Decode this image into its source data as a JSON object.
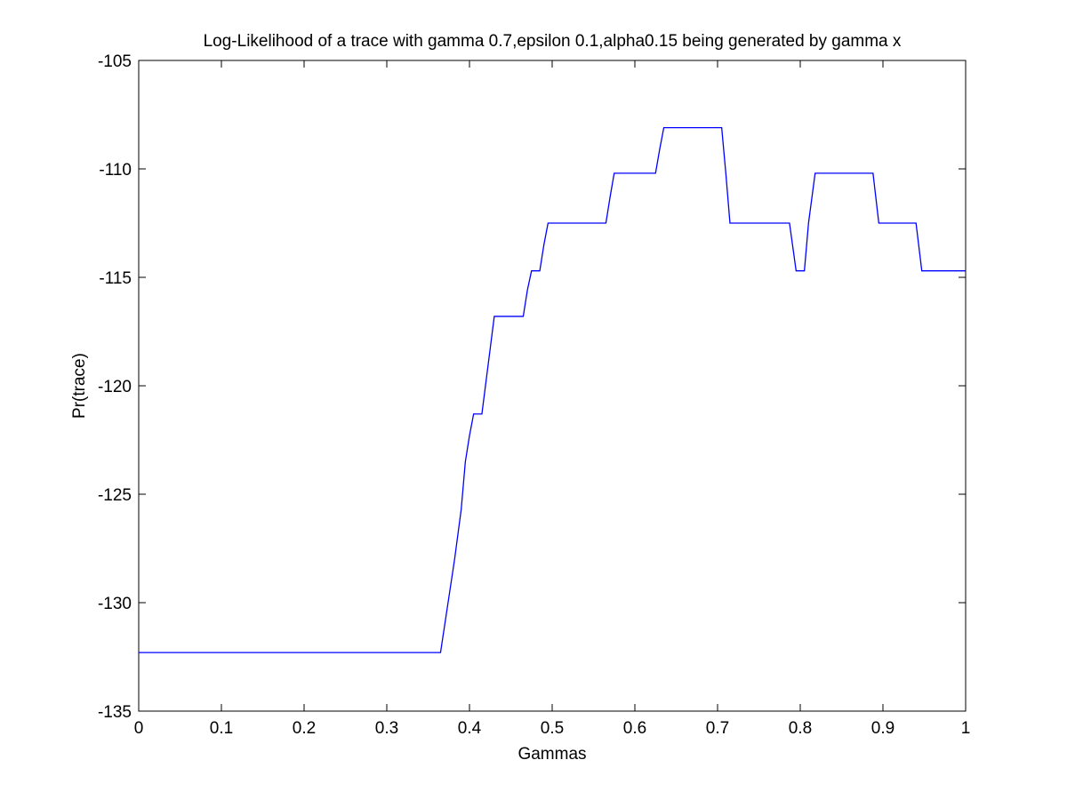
{
  "chart_data": {
    "type": "line",
    "title": "Log-Likelihood of a trace with gamma 0.7,epsilon 0.1,alpha0.15 being generated by gamma x",
    "xlabel": "Gammas",
    "ylabel": "Pr(trace)",
    "xlim": [
      0,
      1
    ],
    "ylim": [
      -135,
      -105
    ],
    "xticks": [
      0,
      0.1,
      0.2,
      0.3,
      0.4,
      0.5,
      0.6,
      0.7,
      0.8,
      0.9,
      1
    ],
    "xtick_labels": [
      "0",
      "0.1",
      "0.2",
      "0.3",
      "0.4",
      "0.5",
      "0.6",
      "0.7",
      "0.8",
      "0.9",
      "1"
    ],
    "yticks": [
      -135,
      -130,
      -125,
      -120,
      -115,
      -110,
      -105
    ],
    "ytick_labels": [
      "-135",
      "-130",
      "-125",
      "-120",
      "-115",
      "-110",
      "-105"
    ],
    "grid": false,
    "line_color": "#0000ff",
    "axes_color": "#000000",
    "series": [
      {
        "x": [
          0,
          0.05,
          0.1,
          0.15,
          0.2,
          0.25,
          0.3,
          0.35,
          0.365,
          0.382,
          0.39,
          0.395,
          0.4,
          0.405,
          0.41,
          0.415,
          0.42,
          0.425,
          0.43,
          0.435,
          0.44,
          0.45,
          0.46,
          0.465,
          0.47,
          0.475,
          0.48,
          0.485,
          0.49,
          0.495,
          0.5,
          0.51,
          0.52,
          0.53,
          0.54,
          0.55,
          0.56,
          0.565,
          0.57,
          0.575,
          0.58,
          0.59,
          0.6,
          0.61,
          0.62,
          0.625,
          0.63,
          0.635,
          0.64,
          0.65,
          0.66,
          0.67,
          0.68,
          0.69,
          0.7,
          0.705,
          0.71,
          0.715,
          0.72,
          0.73,
          0.74,
          0.75,
          0.76,
          0.77,
          0.78,
          0.787,
          0.795,
          0.8,
          0.805,
          0.81,
          0.818,
          0.82,
          0.83,
          0.84,
          0.85,
          0.86,
          0.87,
          0.88,
          0.888,
          0.895,
          0.9,
          0.91,
          0.92,
          0.93,
          0.94,
          0.947,
          0.95,
          0.96,
          0.97,
          0.98,
          0.99,
          1
        ],
        "y": [
          -132.3,
          -132.3,
          -132.3,
          -132.3,
          -132.3,
          -132.3,
          -132.3,
          -132.3,
          -132.3,
          -128,
          -125.7,
          -123.5,
          -122.3,
          -121.3,
          -121.3,
          -121.3,
          -119.8,
          -118.3,
          -116.8,
          -116.8,
          -116.8,
          -116.8,
          -116.8,
          -116.8,
          -115.6,
          -114.7,
          -114.7,
          -114.7,
          -113.5,
          -112.5,
          -112.5,
          -112.5,
          -112.5,
          -112.5,
          -112.5,
          -112.5,
          -112.5,
          -112.5,
          -111.3,
          -110.2,
          -110.2,
          -110.2,
          -110.2,
          -110.2,
          -110.2,
          -110.2,
          -109.1,
          -108.1,
          -108.1,
          -108.1,
          -108.1,
          -108.1,
          -108.1,
          -108.1,
          -108.1,
          -108.1,
          -110.2,
          -112.5,
          -112.5,
          -112.5,
          -112.5,
          -112.5,
          -112.5,
          -112.5,
          -112.5,
          -112.5,
          -114.7,
          -114.7,
          -114.7,
          -112.5,
          -110.2,
          -110.2,
          -110.2,
          -110.2,
          -110.2,
          -110.2,
          -110.2,
          -110.2,
          -110.2,
          -112.5,
          -112.5,
          -112.5,
          -112.5,
          -112.5,
          -112.5,
          -114.7,
          -114.7,
          -114.7,
          -114.7,
          -114.7,
          -114.7,
          -114.7
        ]
      }
    ]
  }
}
